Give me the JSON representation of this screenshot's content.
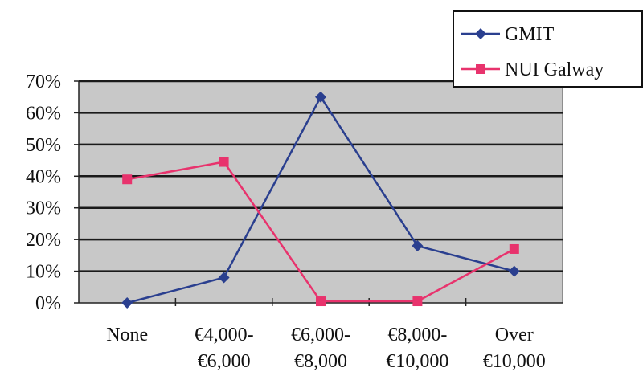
{
  "chart_data": {
    "type": "line",
    "title": "",
    "xlabel": "",
    "ylabel": "",
    "categories": [
      [
        "None"
      ],
      [
        "€4,000-",
        "€6,000"
      ],
      [
        "€6,000-",
        "€8,000"
      ],
      [
        "€8,000-",
        "€10,000"
      ],
      [
        "Over",
        "€10,000"
      ]
    ],
    "y_ticks": [
      "0%",
      "10%",
      "20%",
      "30%",
      "40%",
      "50%",
      "60%",
      "70%"
    ],
    "ylim": [
      0,
      70
    ],
    "grid": true,
    "legend_position": "top-right",
    "series": [
      {
        "name": "GMIT",
        "values": [
          0,
          8,
          65,
          18,
          10
        ],
        "color": "#2a3f8f",
        "marker": "diamond"
      },
      {
        "name": "NUI Galway",
        "values": [
          39,
          44.5,
          0.5,
          0.5,
          17
        ],
        "color": "#e8336d",
        "marker": "square"
      }
    ],
    "plot_background": "#c8c8c8",
    "gridline_color": "#1a1a1a"
  }
}
